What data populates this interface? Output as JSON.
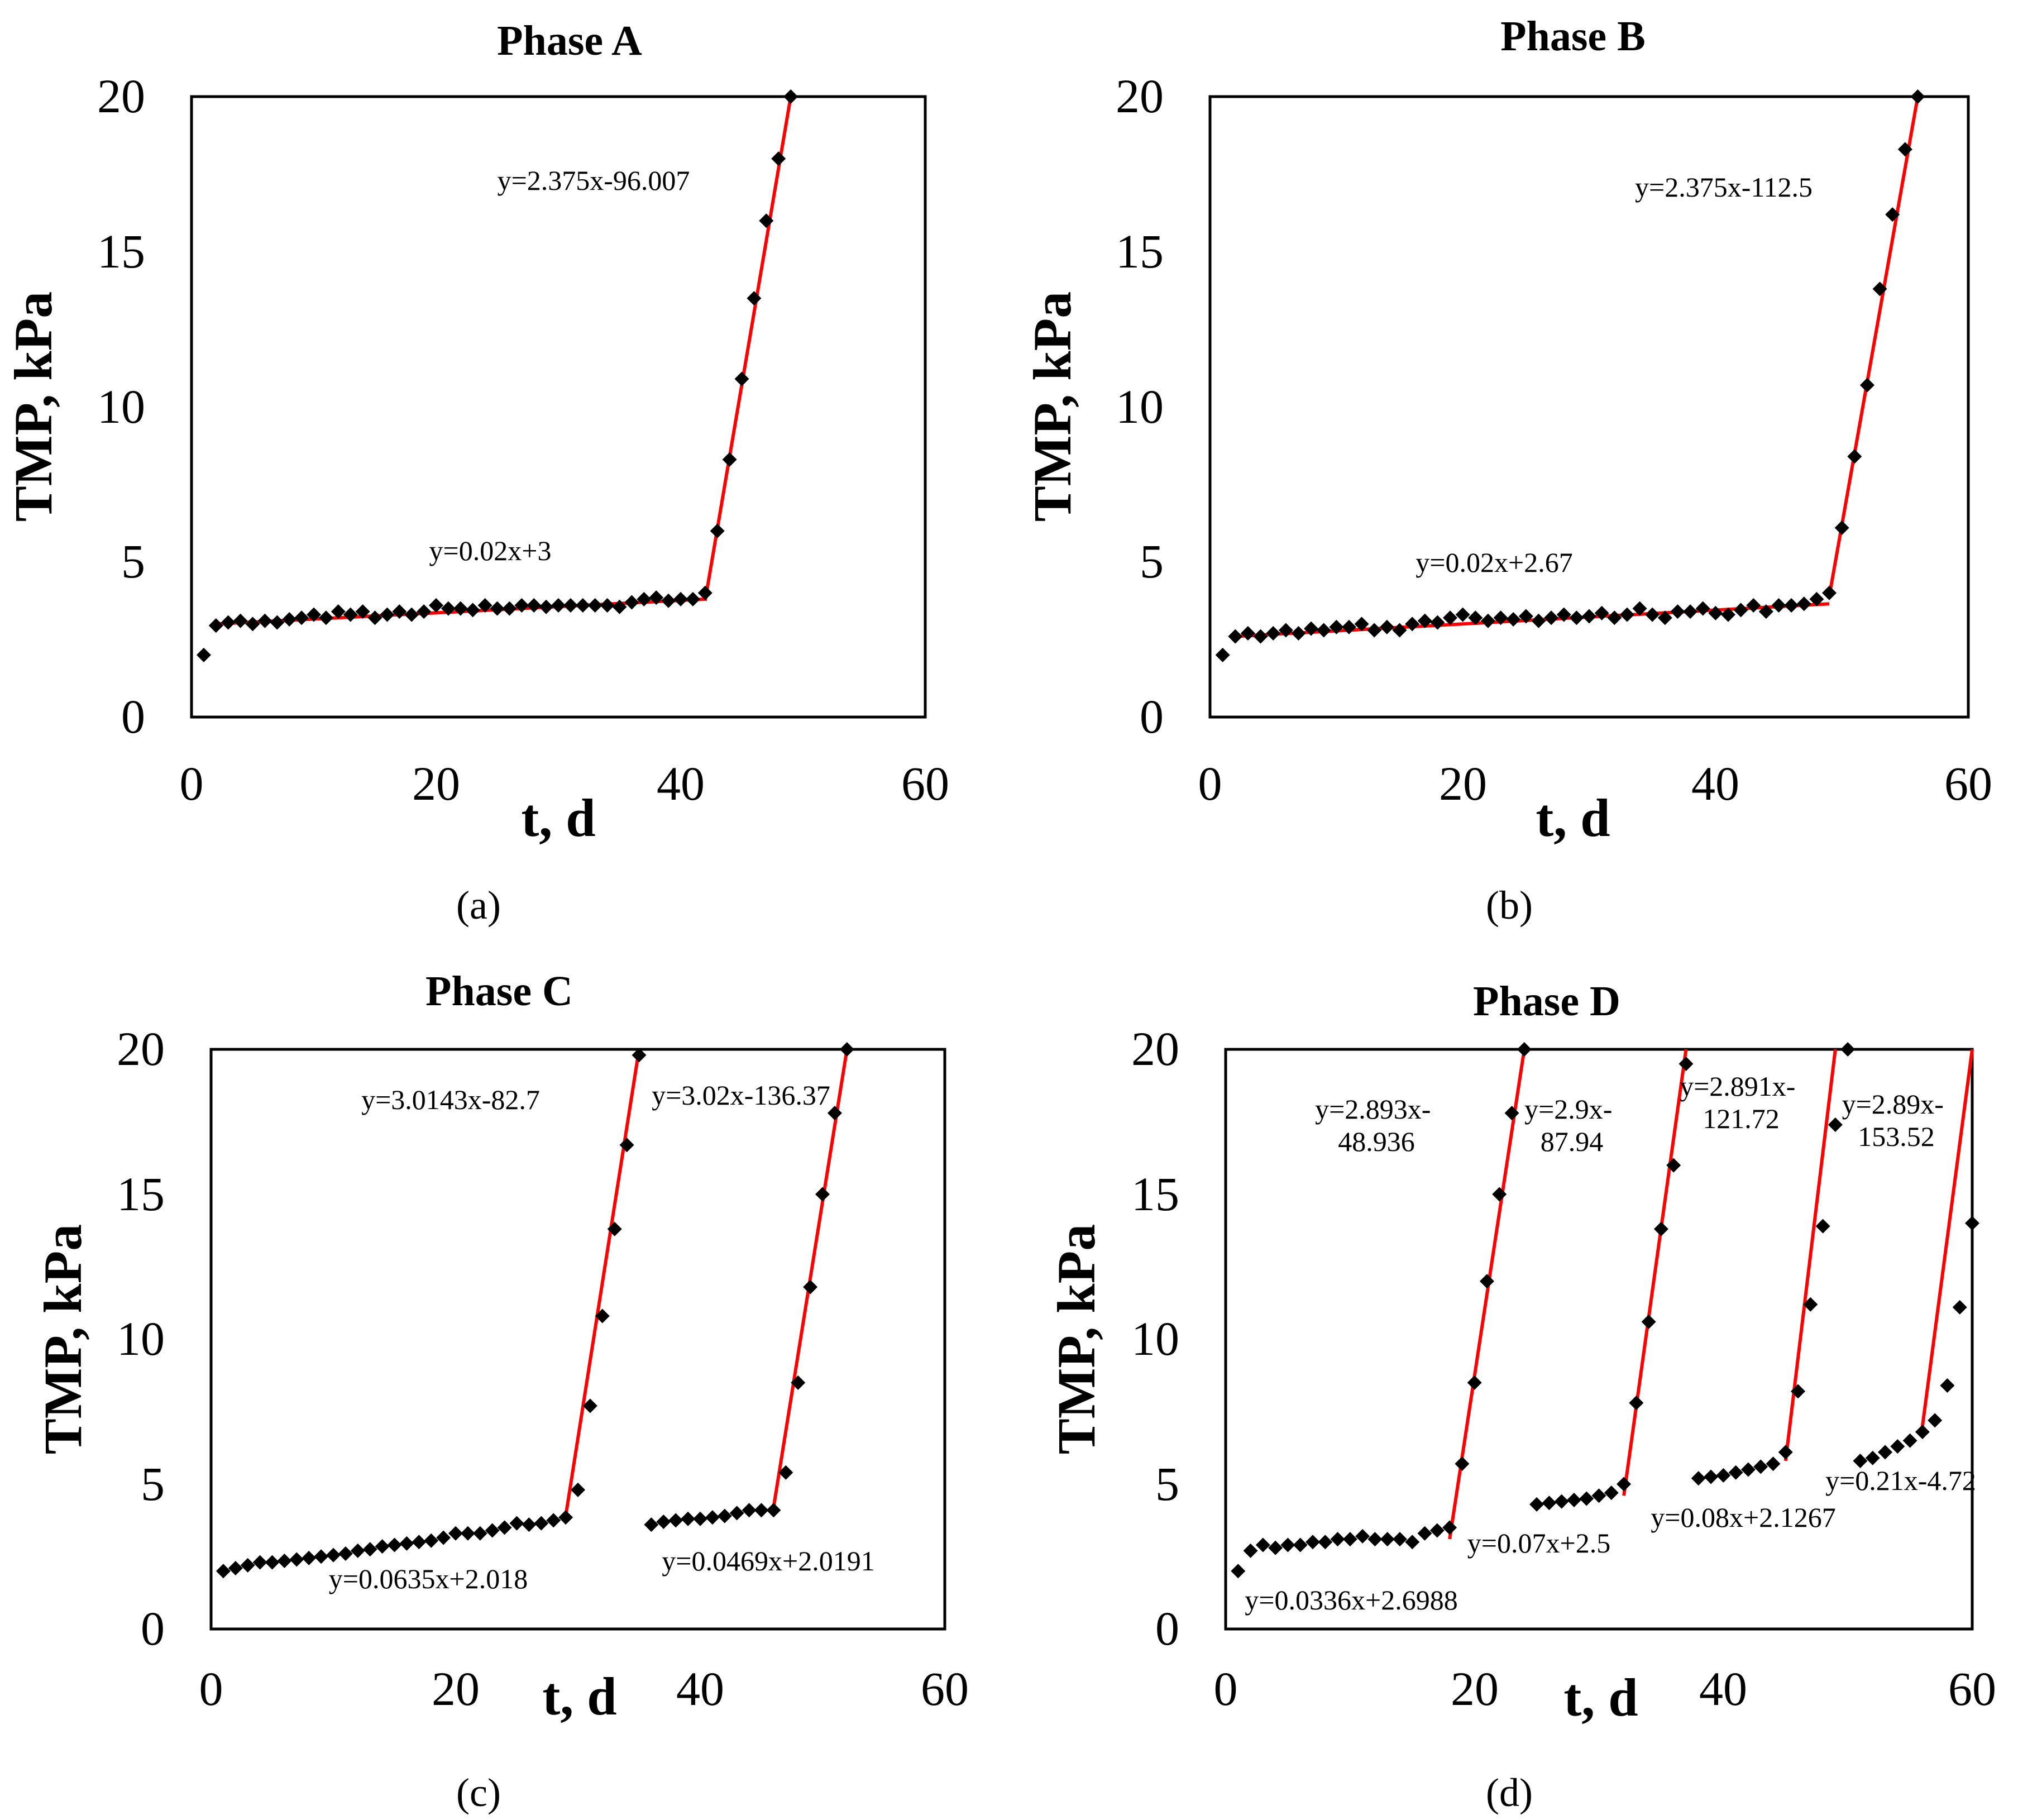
{
  "chart_data": [
    {
      "type": "scatter",
      "title": "Phase A",
      "caption": "(a)",
      "xlabel": "t, d",
      "ylabel": "TMP, kPa",
      "xlim": [
        0,
        60
      ],
      "ylim": [
        0,
        20
      ],
      "xticks": [
        "0",
        "20",
        "40",
        "60"
      ],
      "yticks": [
        "0",
        "5",
        "10",
        "15",
        "20"
      ],
      "series": [
        {
          "name": "TMP",
          "x": [
            1,
            2,
            3,
            4,
            5,
            6,
            7,
            8,
            9,
            10,
            11,
            12,
            13,
            14,
            15,
            16,
            17,
            18,
            19,
            20,
            21,
            22,
            23,
            24,
            25,
            26,
            27,
            28,
            29,
            30,
            31,
            32,
            33,
            34,
            35,
            36,
            37,
            38,
            39,
            40,
            41,
            42,
            43,
            44,
            45,
            46,
            47,
            48,
            49
          ],
          "y": [
            2.0,
            2.95,
            3.05,
            3.1,
            3.0,
            3.1,
            3.05,
            3.15,
            3.2,
            3.3,
            3.2,
            3.4,
            3.3,
            3.4,
            3.2,
            3.3,
            3.4,
            3.3,
            3.4,
            3.6,
            3.5,
            3.5,
            3.45,
            3.6,
            3.5,
            3.5,
            3.6,
            3.6,
            3.55,
            3.6,
            3.6,
            3.6,
            3.6,
            3.6,
            3.55,
            3.7,
            3.8,
            3.85,
            3.75,
            3.8,
            3.8,
            4.0,
            6.0,
            8.3,
            10.9,
            13.5,
            16.0,
            18.0,
            20.0
          ]
        }
      ],
      "trendlines": [
        {
          "equation": "y=0.02x+3",
          "x": [
            2,
            42
          ],
          "y": [
            3.0,
            3.8
          ]
        },
        {
          "equation": "y=2.375x-96.007",
          "x": [
            42,
            49
          ],
          "y": [
            3.75,
            20.0
          ]
        }
      ]
    },
    {
      "type": "scatter",
      "title": "Phase B",
      "caption": "(b)",
      "xlabel": "t, d",
      "ylabel": "TMP, kPa",
      "xlim": [
        0,
        60
      ],
      "ylim": [
        0,
        20
      ],
      "xticks": [
        "0",
        "20",
        "40",
        "60"
      ],
      "yticks": [
        "0",
        "5",
        "10",
        "15",
        "20"
      ],
      "series": [
        {
          "name": "TMP",
          "x": [
            1,
            2,
            3,
            4,
            5,
            6,
            7,
            8,
            9,
            10,
            11,
            12,
            13,
            14,
            15,
            16,
            17,
            18,
            19,
            20,
            21,
            22,
            23,
            24,
            25,
            26,
            27,
            28,
            29,
            30,
            31,
            32,
            33,
            34,
            35,
            36,
            37,
            38,
            39,
            40,
            41,
            42,
            43,
            44,
            45,
            46,
            47,
            48,
            49,
            50,
            51,
            52,
            53,
            54,
            55,
            56
          ],
          "y": [
            2.0,
            2.6,
            2.7,
            2.6,
            2.7,
            2.8,
            2.7,
            2.85,
            2.8,
            2.9,
            2.9,
            3.0,
            2.8,
            2.9,
            2.8,
            3.0,
            3.1,
            3.05,
            3.2,
            3.3,
            3.2,
            3.1,
            3.2,
            3.15,
            3.25,
            3.1,
            3.2,
            3.3,
            3.2,
            3.25,
            3.35,
            3.2,
            3.3,
            3.5,
            3.3,
            3.2,
            3.4,
            3.4,
            3.5,
            3.35,
            3.3,
            3.45,
            3.6,
            3.4,
            3.6,
            3.6,
            3.65,
            3.8,
            4.0,
            6.1,
            8.4,
            10.7,
            13.8,
            16.2,
            18.3,
            20.0
          ]
        }
      ],
      "trendlines": [
        {
          "equation": "y=0.02x+2.67",
          "x": [
            2,
            49
          ],
          "y": [
            2.6,
            3.65
          ]
        },
        {
          "equation": "y=2.375x-112.5",
          "x": [
            49,
            56
          ],
          "y": [
            3.9,
            20.0
          ]
        }
      ]
    },
    {
      "type": "scatter",
      "title": "Phase C",
      "caption": "(c)",
      "xlabel": "t, d",
      "ylabel": "TMP, kPa",
      "xlim": [
        0,
        60
      ],
      "ylim": [
        0,
        20
      ],
      "xticks": [
        "0",
        "20",
        "40",
        "60"
      ],
      "yticks": [
        "0",
        "5",
        "10",
        "15",
        "20"
      ],
      "series": [
        {
          "name": "TMP",
          "x": [
            1,
            2,
            3,
            4,
            5,
            6,
            7,
            8,
            9,
            10,
            11,
            12,
            13,
            14,
            15,
            16,
            17,
            18,
            19,
            20,
            21,
            22,
            23,
            24,
            25,
            26,
            27,
            28,
            29,
            30,
            31,
            32,
            33,
            34,
            35,
            36,
            37,
            38,
            39,
            40,
            41,
            42,
            43,
            44,
            45,
            46,
            47,
            48,
            49,
            50,
            51,
            52
          ],
          "y": [
            2.0,
            2.1,
            2.2,
            2.3,
            2.3,
            2.35,
            2.4,
            2.45,
            2.5,
            2.55,
            2.6,
            2.7,
            2.75,
            2.85,
            2.9,
            2.95,
            3.0,
            3.05,
            3.15,
            3.3,
            3.3,
            3.3,
            3.4,
            3.5,
            3.65,
            3.6,
            3.65,
            3.75,
            3.85,
            4.8,
            7.7,
            10.8,
            13.8,
            16.7,
            19.8,
            3.6,
            3.7,
            3.75,
            3.8,
            3.8,
            3.85,
            3.9,
            4.0,
            4.1,
            4.1,
            4.1,
            5.4,
            8.5,
            11.8,
            15.0,
            17.8,
            20.0
          ]
        }
      ],
      "trendlines": [
        {
          "equation": "y=3.0143x-82.7",
          "x": [
            29,
            35
          ],
          "y": [
            3.9,
            20.0
          ]
        },
        {
          "equation": "y=3.02x-136.37",
          "x": [
            46,
            52
          ],
          "y": [
            4.2,
            20.0
          ]
        }
      ],
      "annotations": [
        "y=0.0635x+2.018",
        "y=0.0469x+2.0191"
      ]
    },
    {
      "type": "scatter",
      "title": "Phase D",
      "caption": "(d)",
      "xlabel": "t, d",
      "ylabel": "TMP, kPa",
      "xlim": [
        0,
        60
      ],
      "ylim": [
        0,
        20
      ],
      "xticks": [
        "0",
        "20",
        "40",
        "60"
      ],
      "yticks": [
        "0",
        "5",
        "10",
        "15",
        "20"
      ],
      "series": [
        {
          "name": "TMP",
          "x": [
            1,
            2,
            3,
            4,
            5,
            6,
            7,
            8,
            9,
            10,
            11,
            12,
            13,
            14,
            15,
            16,
            17,
            18,
            19,
            20,
            21,
            22,
            23,
            24,
            25,
            26,
            27,
            28,
            29,
            30,
            31,
            32,
            33,
            34,
            35,
            36,
            37,
            38,
            39,
            40,
            41,
            42,
            43,
            44,
            45,
            46,
            47,
            48,
            49,
            50,
            51,
            52,
            53,
            54,
            55,
            56,
            57,
            58,
            59,
            60
          ],
          "y": [
            2.0,
            2.7,
            2.9,
            2.8,
            2.9,
            2.9,
            3.0,
            3.0,
            3.1,
            3.1,
            3.2,
            3.1,
            3.1,
            3.1,
            3.0,
            3.3,
            3.4,
            3.5,
            5.7,
            8.5,
            12.0,
            15.0,
            17.8,
            20.0,
            4.3,
            4.35,
            4.4,
            4.45,
            4.5,
            4.6,
            4.7,
            5.0,
            7.8,
            10.6,
            13.8,
            16.0,
            19.5,
            5.2,
            5.25,
            5.3,
            5.4,
            5.5,
            5.6,
            5.7,
            6.1,
            8.2,
            11.2,
            13.9,
            17.4,
            20.0,
            5.8,
            5.9,
            6.1,
            6.3,
            6.5,
            6.8,
            7.2,
            8.4,
            11.1,
            14.0
          ]
        }
      ],
      "trendlines": [
        {
          "equation": "y=2.893x-48.936",
          "x": [
            18,
            24
          ],
          "y": [
            3.1,
            20.0
          ]
        },
        {
          "equation": "y=2.9x-87.94",
          "x": [
            32,
            37
          ],
          "y": [
            4.6,
            20.0
          ]
        },
        {
          "equation": "y=2.891x-121.72",
          "x": [
            45,
            49
          ],
          "y": [
            5.8,
            20.0
          ]
        },
        {
          "equation": "y=2.89x-153.52",
          "x": [
            56,
            60
          ],
          "y": [
            7.0,
            20.0
          ]
        }
      ],
      "annotations": [
        "y=0.0336x+2.6988",
        "y=0.07x+2.5",
        "y=0.08x+2.1267",
        "y=0.21x-4.72"
      ]
    }
  ],
  "colors": {
    "marker": "#000000",
    "trendline": "#ff0000",
    "axis": "#000000"
  }
}
